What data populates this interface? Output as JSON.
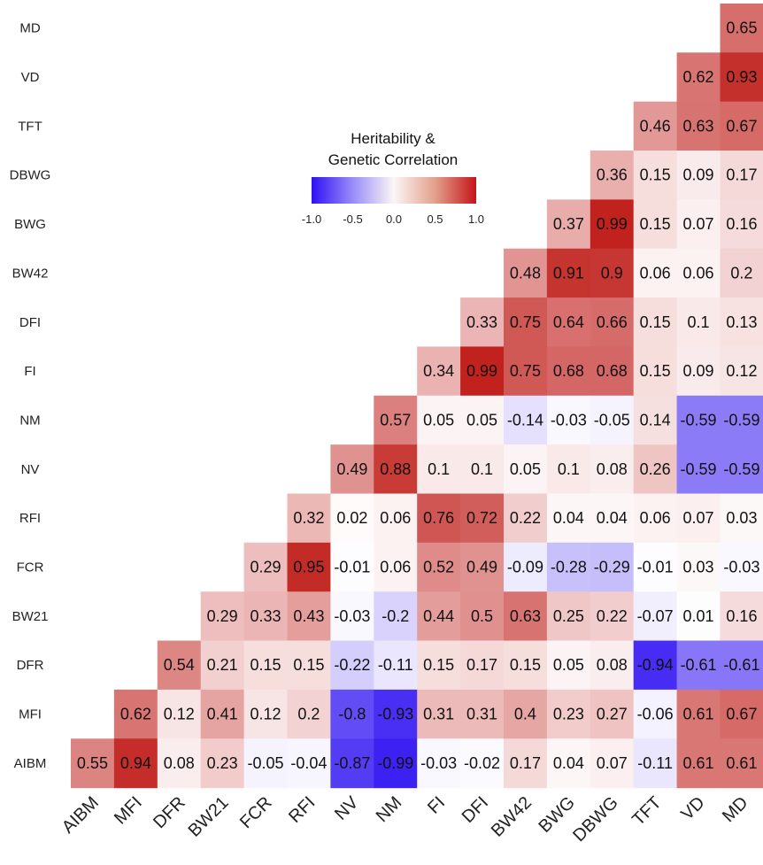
{
  "chart_data": {
    "type": "heatmap",
    "rows": [
      "MD",
      "VD",
      "TFT",
      "DBWG",
      "BWG",
      "BW42",
      "DFI",
      "FI",
      "NM",
      "NV",
      "RFI",
      "FCR",
      "BW21",
      "DFR",
      "MFI",
      "AIBM"
    ],
    "columns": [
      "AIBM",
      "MFI",
      "DFR",
      "BW21",
      "FCR",
      "RFI",
      "NV",
      "NM",
      "FI",
      "DFI",
      "BW42",
      "BWG",
      "DBWG",
      "TFT",
      "VD",
      "MD"
    ],
    "cells": [
      [
        "0.65"
      ],
      [
        "0.62",
        "0.93"
      ],
      [
        "0.46",
        "0.63",
        "0.67"
      ],
      [
        "0.36",
        "0.15",
        "0.09",
        "0.17"
      ],
      [
        "0.37",
        "0.99",
        "0.15",
        "0.07",
        "0.16"
      ],
      [
        "0.48",
        "0.91",
        "0.9",
        "0.06",
        "0.06",
        "0.2"
      ],
      [
        "0.33",
        "0.75",
        "0.64",
        "0.66",
        "0.15",
        "0.1",
        "0.13"
      ],
      [
        "0.34",
        "0.99",
        "0.75",
        "0.68",
        "0.68",
        "0.15",
        "0.09",
        "0.12"
      ],
      [
        "0.57",
        "0.05",
        "0.05",
        "-0.14",
        "-0.03",
        "-0.05",
        "0.14",
        "-0.59",
        "-0.59"
      ],
      [
        "0.49",
        "0.88",
        "0.1",
        "0.1",
        "0.05",
        "0.1",
        "0.08",
        "0.26",
        "-0.59",
        "-0.59"
      ],
      [
        "0.32",
        "0.02",
        "0.06",
        "0.76",
        "0.72",
        "0.22",
        "0.04",
        "0.04",
        "0.06",
        "0.07",
        "0.03"
      ],
      [
        "0.29",
        "0.95",
        "-0.01",
        "0.06",
        "0.52",
        "0.49",
        "-0.09",
        "-0.28",
        "-0.29",
        "-0.01",
        "0.03",
        "-0.03"
      ],
      [
        "0.29",
        "0.33",
        "0.43",
        "-0.03",
        "-0.2",
        "0.44",
        "0.5",
        "0.63",
        "0.25",
        "0.22",
        "-0.07",
        "0.01",
        "0.16"
      ],
      [
        "0.54",
        "0.21",
        "0.15",
        "0.15",
        "-0.22",
        "-0.11",
        "0.15",
        "0.17",
        "0.15",
        "0.05",
        "0.08",
        "-0.94",
        "-0.61",
        "-0.61"
      ],
      [
        "0.62",
        "0.12",
        "0.41",
        "0.12",
        "0.2",
        "-0.8",
        "-0.93",
        "0.31",
        "0.31",
        "0.4",
        "0.23",
        "0.27",
        "-0.06",
        "0.61",
        "0.67"
      ],
      [
        "0.55",
        "0.94",
        "0.08",
        "0.23",
        "-0.05",
        "-0.04",
        "-0.87",
        "-0.99",
        "-0.03",
        "-0.02",
        "0.17",
        "0.04",
        "0.07",
        "-0.11",
        "0.61",
        "0.61"
      ]
    ],
    "legend": {
      "title_line1": "Heritability &",
      "title_line2": "Genetic Correlation",
      "ticks": [
        "-1.0",
        "-0.5",
        "0.0",
        "0.5",
        "1.0"
      ],
      "range": [
        -1.0,
        1.0
      ]
    },
    "colors": {
      "negative": "#3b1ff2",
      "neutral": "#ffffff",
      "positive": "#c0201c"
    }
  }
}
